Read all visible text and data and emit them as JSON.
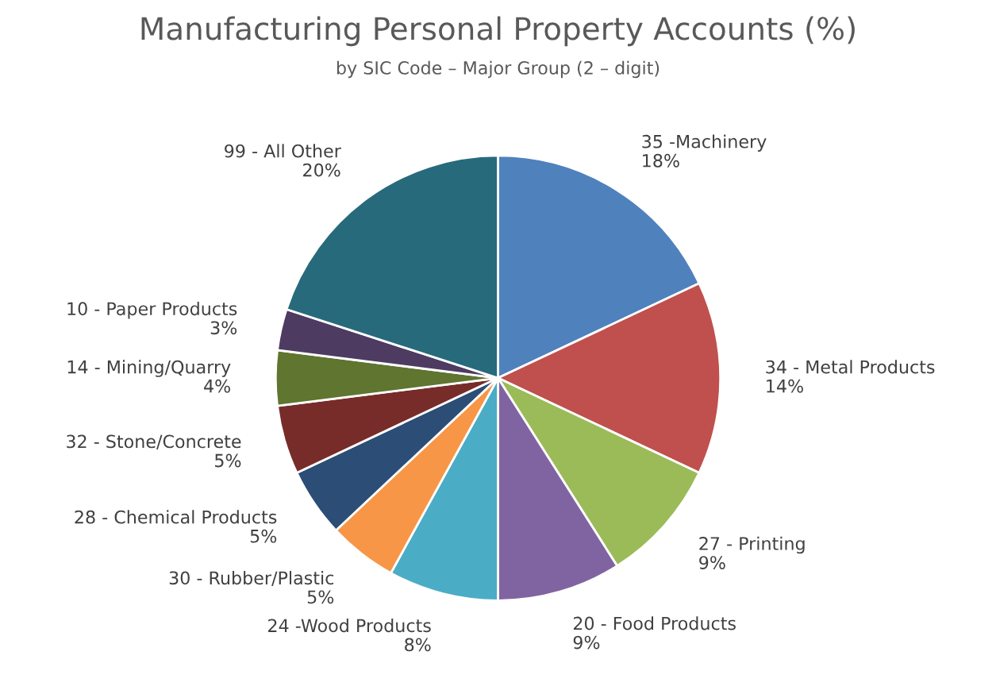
{
  "chart_data": {
    "type": "pie",
    "title": "Manufacturing Personal Property Accounts (%)",
    "subtitle": "by SIC Code – Major Group (2 – digit)",
    "categories": [
      "35 -Machinery",
      "34 - Metal Products",
      "27 - Printing",
      "20 - Food Products",
      "24 -Wood Products",
      "30 - Rubber/Plastic",
      "28 - Chemical Products",
      "32 - Stone/Concrete",
      "14 - Mining/Quarry",
      "10 - Paper Products",
      "99 - All Other"
    ],
    "values": [
      18,
      14,
      9,
      9,
      8,
      5,
      5,
      5,
      4,
      3,
      20
    ],
    "value_labels": [
      "18%",
      "14%",
      "9%",
      "9%",
      "8%",
      "5%",
      "5%",
      "5%",
      "4%",
      "3%",
      "20%"
    ],
    "colors": [
      "#4f81bd",
      "#c0504d",
      "#9bbb59",
      "#8064a2",
      "#4bacc6",
      "#f79646",
      "#2c4d75",
      "#772c2a",
      "#5f7530",
      "#4d3b62",
      "#276a7c"
    ],
    "legend": false
  }
}
